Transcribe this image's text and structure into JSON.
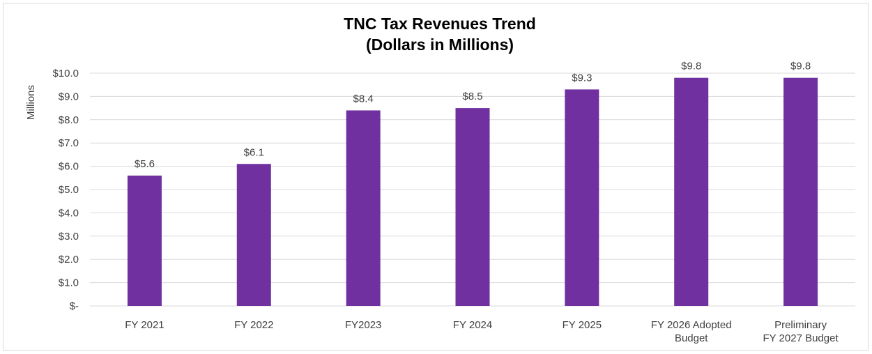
{
  "chart_data": {
    "type": "bar",
    "title_lines": [
      "TNC Tax Revenues Trend",
      "(Dollars in Millions)"
    ],
    "ylabel": "Millions",
    "xlabel": "",
    "ylim": [
      0,
      10
    ],
    "ytick_values": [
      0,
      1,
      2,
      3,
      4,
      5,
      6,
      7,
      8,
      9,
      10
    ],
    "ytick_labels": [
      "$-",
      "$1.0",
      "$2.0",
      "$3.0",
      "$4.0",
      "$5.0",
      "$6.0",
      "$7.0",
      "$8.0",
      "$9.0",
      "$10.0"
    ],
    "categories": [
      [
        "FY 2021"
      ],
      [
        "FY 2022"
      ],
      [
        "FY2023"
      ],
      [
        "FY 2024"
      ],
      [
        "FY 2025"
      ],
      [
        "FY 2026 Adopted",
        "Budget"
      ],
      [
        "Preliminary",
        "FY 2027 Budget"
      ]
    ],
    "values": [
      5.6,
      6.1,
      8.4,
      8.5,
      9.3,
      9.8,
      9.8
    ],
    "data_labels": [
      "$5.6",
      "$6.1",
      "$8.4",
      "$8.5",
      "$9.3",
      "$9.8",
      "$9.8"
    ],
    "bar_color": "#7030a0",
    "grid": true,
    "legend": "none"
  }
}
